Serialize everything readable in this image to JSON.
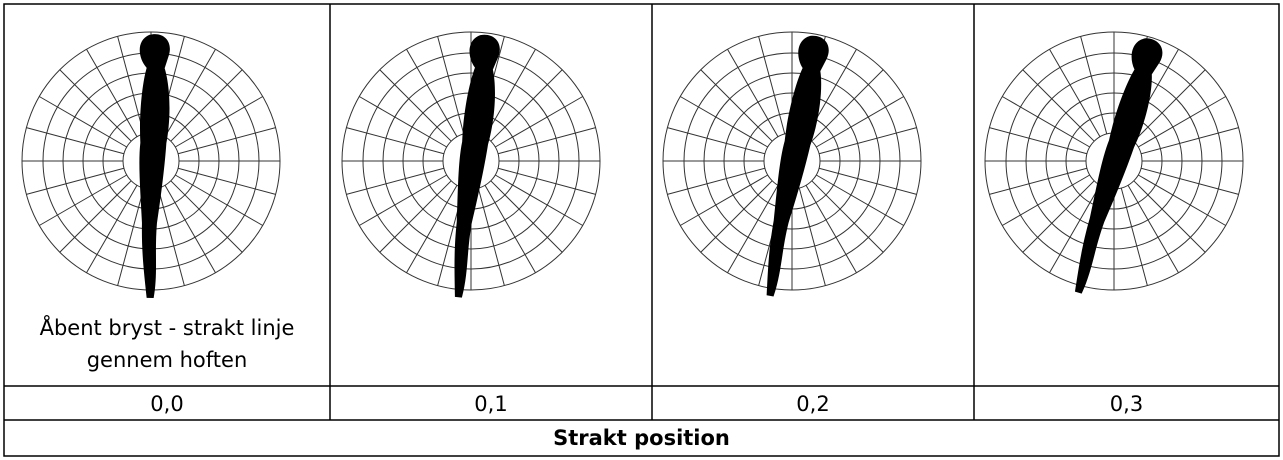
{
  "cells": [
    {
      "caption": "Åbent bryst - strakt linje gennem hoften",
      "value": "0,0"
    },
    {
      "value": "0,1"
    },
    {
      "value": "0,2"
    },
    {
      "value": "0,3"
    }
  ],
  "footer": "Strakt position"
}
